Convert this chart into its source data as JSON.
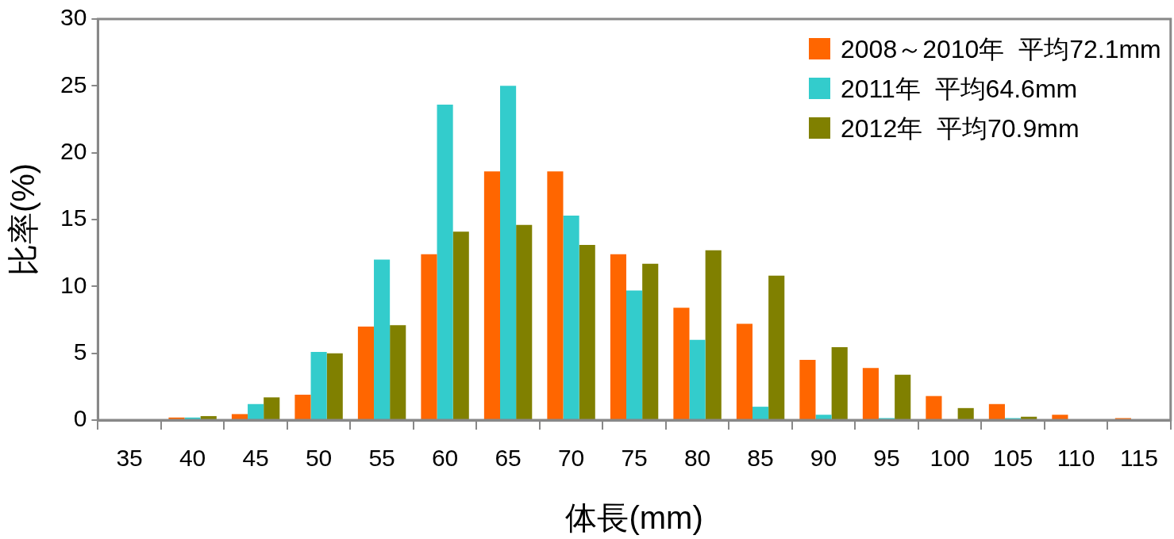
{
  "chart_data": {
    "type": "bar",
    "xlabel": "体長(mm)",
    "ylabel": "比率(%)",
    "categories": [
      "35",
      "40",
      "45",
      "50",
      "55",
      "60",
      "65",
      "70",
      "75",
      "80",
      "85",
      "90",
      "95",
      "100",
      "105",
      "110",
      "115"
    ],
    "series": [
      {
        "name": "2008～2010年  平均72.1mm",
        "color": "#ff6600",
        "values": [
          0,
          0.2,
          0.45,
          1.9,
          7.0,
          12.4,
          18.6,
          18.6,
          12.4,
          8.4,
          7.2,
          4.5,
          3.9,
          1.8,
          1.2,
          0.4,
          0.15
        ]
      },
      {
        "name": "2011年  平均64.6mm",
        "color": "#33cccc",
        "values": [
          0,
          0.2,
          1.2,
          5.1,
          12.0,
          23.6,
          25.0,
          15.3,
          9.7,
          6.0,
          1.0,
          0.4,
          0.15,
          0,
          0.15,
          0,
          0
        ]
      },
      {
        "name": "2012年  平均70.9mm",
        "color": "#808000",
        "values": [
          0,
          0.3,
          1.7,
          5.0,
          7.1,
          14.1,
          14.6,
          13.1,
          11.7,
          12.7,
          10.8,
          5.45,
          3.4,
          0.9,
          0.25,
          0,
          0
        ]
      }
    ],
    "ylim": [
      0,
      30
    ],
    "yticks": [
      0,
      5,
      10,
      15,
      20,
      25,
      30
    ],
    "grid": false,
    "legend": "top right"
  }
}
